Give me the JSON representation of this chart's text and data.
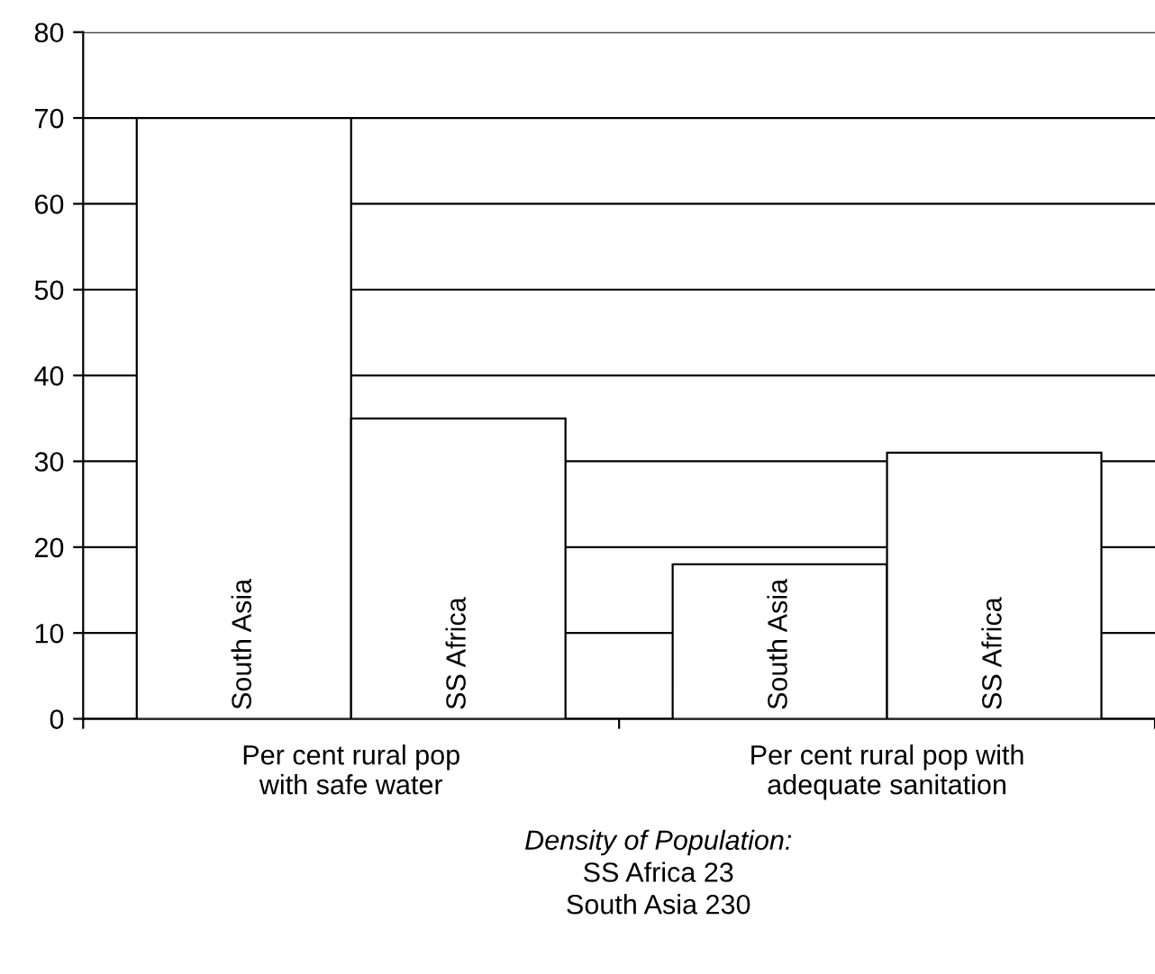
{
  "chart_data": {
    "type": "bar",
    "categories": [
      "Per cent rural pop\nwith safe water",
      "Per cent rural pop with\nadequate sanitation"
    ],
    "series": [
      {
        "name": "South Asia",
        "color": "#ffffff",
        "values": [
          70,
          18
        ]
      },
      {
        "name": "SS Africa",
        "color": "#ffffff",
        "values": [
          35,
          31
        ]
      }
    ],
    "ylim": [
      0,
      80
    ],
    "yticks": [
      0,
      10,
      20,
      30,
      40,
      50,
      60,
      70,
      80
    ],
    "grid": "y",
    "legend": false,
    "annotations": [
      "Density of Population:",
      "SS Africa 23",
      "South Asia 230"
    ]
  }
}
